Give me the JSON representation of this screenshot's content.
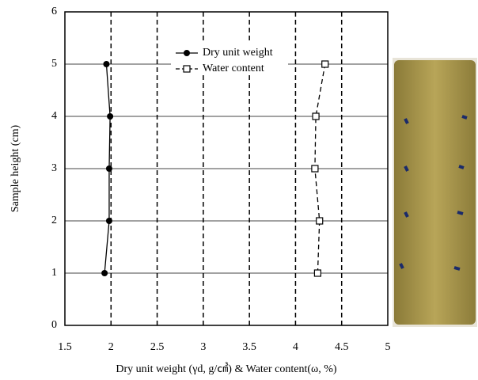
{
  "chart_data": {
    "type": "line",
    "x_label": "Dry unit weight (γd, g/㎤) & Water content(ω, %)",
    "y_label": "Sample height (cm)",
    "xlim": [
      1.5,
      5
    ],
    "xticks": [
      1.5,
      2,
      2.5,
      3,
      3.5,
      4,
      4.5,
      5
    ],
    "ylim": [
      0,
      6
    ],
    "yticks": [
      0,
      1,
      2,
      3,
      4,
      5,
      6
    ],
    "grid": true,
    "series": [
      {
        "name": "Dry unit weight",
        "color": "#000000",
        "marker": "circle",
        "dashed": false,
        "x": [
          1.93,
          1.98,
          1.98,
          1.99,
          1.95
        ],
        "values": [
          1,
          2,
          3,
          4,
          5
        ]
      },
      {
        "name": "Water content",
        "color": "#000000",
        "marker": "square",
        "dashed": true,
        "x": [
          4.24,
          4.26,
          4.21,
          4.22,
          4.32
        ],
        "values": [
          1,
          2,
          3,
          4,
          5
        ]
      }
    ]
  }
}
